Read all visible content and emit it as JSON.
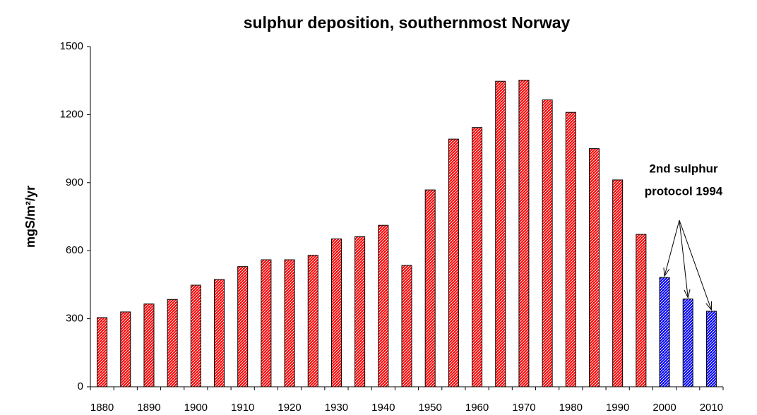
{
  "chart_data": {
    "type": "bar",
    "title": "sulphur deposition, southernmost Norway",
    "y_label": "mgS/m²/yr",
    "categories": [
      "1880",
      null,
      "1890",
      null,
      "1900",
      null,
      "1910",
      null,
      "1920",
      null,
      "1930",
      null,
      "1940",
      null,
      "1950",
      null,
      "1960",
      null,
      "1970",
      null,
      "1980",
      null,
      "1990",
      null,
      "2000",
      null,
      "2010"
    ],
    "values": [
      305,
      330,
      365,
      385,
      448,
      473,
      530,
      560,
      560,
      580,
      652,
      662,
      712,
      535,
      868,
      1092,
      1143,
      1347,
      1352,
      1265,
      1210,
      1050,
      912,
      672,
      482,
      387,
      333
    ],
    "colors": [
      "#ff0000",
      "#ff0000",
      "#ff0000",
      "#ff0000",
      "#ff0000",
      "#ff0000",
      "#ff0000",
      "#ff0000",
      "#ff0000",
      "#ff0000",
      "#ff0000",
      "#ff0000",
      "#ff0000",
      "#ff0000",
      "#ff0000",
      "#ff0000",
      "#ff0000",
      "#ff0000",
      "#ff0000",
      "#ff0000",
      "#ff0000",
      "#ff0000",
      "#ff0000",
      "#ff0000",
      "#0000ff",
      "#0000ff",
      "#0000ff"
    ],
    "ylim": [
      0,
      1500
    ],
    "yticks": [
      0,
      300,
      600,
      900,
      1200,
      1500
    ],
    "grid": false,
    "annotation": [
      "2nd sulphur",
      "protocol 1994"
    ]
  }
}
